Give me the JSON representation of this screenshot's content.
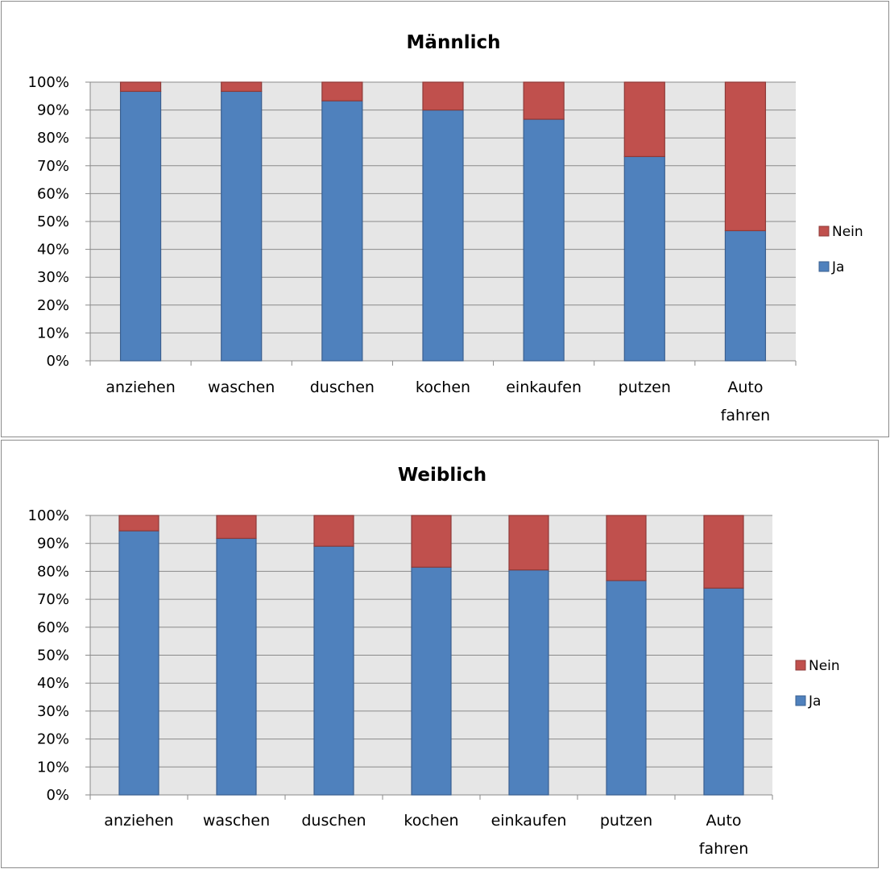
{
  "chart_data": [
    {
      "type": "bar",
      "stacked": true,
      "title": "Männlich",
      "categories": [
        "anziehen",
        "waschen",
        "duschen",
        "kochen",
        "einkaufen",
        "putzen",
        "Auto fahren"
      ],
      "series": [
        {
          "name": "Ja",
          "values": [
            96.7,
            96.7,
            93.3,
            90.0,
            86.7,
            73.3,
            46.7
          ],
          "color": "#4f81bd"
        },
        {
          "name": "Nein",
          "values": [
            3.3,
            3.3,
            6.7,
            10.0,
            13.3,
            26.7,
            53.3
          ],
          "color": "#c0504d"
        }
      ],
      "y_ticks": [
        "0%",
        "10%",
        "20%",
        "30%",
        "40%",
        "50%",
        "60%",
        "70%",
        "80%",
        "90%",
        "100%"
      ],
      "ylim": [
        0,
        100
      ],
      "legend_position": "right",
      "legend_entries": [
        "Nein",
        "Ja"
      ],
      "grid": true,
      "plot_background": "#e6e6e6"
    },
    {
      "type": "bar",
      "stacked": true,
      "title": "Weiblich",
      "categories": [
        "anziehen",
        "waschen",
        "duschen",
        "kochen",
        "einkaufen",
        "putzen",
        "Auto fahren"
      ],
      "series": [
        {
          "name": "Ja",
          "values": [
            94.5,
            91.8,
            89.0,
            81.5,
            80.5,
            76.7,
            74.0
          ],
          "color": "#4f81bd"
        },
        {
          "name": "Nein",
          "values": [
            5.5,
            8.2,
            11.0,
            18.5,
            19.5,
            23.3,
            26.0
          ],
          "color": "#c0504d"
        }
      ],
      "y_ticks": [
        "0%",
        "10%",
        "20%",
        "30%",
        "40%",
        "50%",
        "60%",
        "70%",
        "80%",
        "90%",
        "100%"
      ],
      "ylim": [
        0,
        100
      ],
      "legend_position": "right",
      "legend_entries": [
        "Nein",
        "Ja"
      ],
      "grid": true,
      "plot_background": "#e6e6e6"
    }
  ]
}
